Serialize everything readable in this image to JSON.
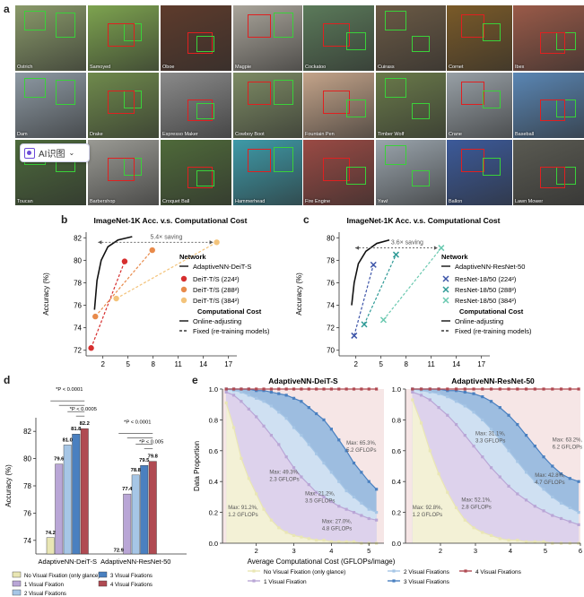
{
  "panel_letters": {
    "a": "a",
    "b": "b",
    "c": "c",
    "d": "d",
    "e": "e"
  },
  "panel_a": {
    "tiles": [
      {
        "label": "Ostrich",
        "color": "#8a9a6a"
      },
      {
        "label": "Samoyed",
        "color": "#7da34f"
      },
      {
        "label": "Oboe",
        "color": "#5e3b2c"
      },
      {
        "label": "Magpie",
        "color": "#a9a49a"
      },
      {
        "label": "Cockatoo",
        "color": "#5b7a5a"
      },
      {
        "label": "Cuirass",
        "color": "#6b5a45"
      },
      {
        "label": "Cornet",
        "color": "#7a5a28"
      },
      {
        "label": "Ibex",
        "color": "#9a5a48"
      },
      {
        "label": "Dam",
        "color": "#8e9aa4"
      },
      {
        "label": "Drake",
        "color": "#6f8a4c"
      },
      {
        "label": "Espresso Maker",
        "color": "#8a8a8a"
      },
      {
        "label": "Cowboy Boot",
        "color": "#7d8b64"
      },
      {
        "label": "Fountain Pen",
        "color": "#c4a48a"
      },
      {
        "label": "Timber Wolf",
        "color": "#6a7a4a"
      },
      {
        "label": "Crane",
        "color": "#98a0a6"
      },
      {
        "label": "Baseball",
        "color": "#5a86b4"
      },
      {
        "label": "Toucan",
        "color": "#4d6a3c"
      },
      {
        "label": "Barbershop",
        "color": "#9a9a94"
      },
      {
        "label": "Croquet Ball",
        "color": "#4f6a3a"
      },
      {
        "label": "Hammerhead",
        "color": "#3e9aa8"
      },
      {
        "label": "Fire Engine",
        "color": "#9a4a44"
      },
      {
        "label": "Yawl",
        "color": "#9aa4ac"
      },
      {
        "label": "Ballon",
        "color": "#3c5a9a"
      },
      {
        "label": "Lawn Mower",
        "color": "#5a5a52"
      }
    ],
    "overlay_text": "AI识图"
  },
  "panel_b": {
    "chart_data": {
      "type": "scatter",
      "title": "ImageNet-1K Acc. v.s. Computational Cost",
      "xlabel": "Average Computational Cost (GFLOPs/image)",
      "ylabel": "Accuracy (%)",
      "xlim": [
        0,
        18
      ],
      "ylim": [
        71.5,
        82.5
      ],
      "xticks": [
        2,
        5,
        8,
        11,
        14,
        17
      ],
      "yticks": [
        72,
        74,
        76,
        78,
        80,
        82
      ],
      "series": [
        {
          "name": "DeiT-T/S (224²)",
          "color": "#d62e2e",
          "points": [
            [
              0.6,
              72.2
            ],
            [
              4.6,
              79.9
            ]
          ]
        },
        {
          "name": "DeiT-T/S (288²)",
          "color": "#e88a4a",
          "points": [
            [
              1.1,
              75.0
            ],
            [
              7.9,
              80.9
            ]
          ]
        },
        {
          "name": "DeiT-T/S (384²)",
          "color": "#f3c37a",
          "points": [
            [
              3.6,
              76.6
            ],
            [
              15.6,
              81.6
            ]
          ]
        }
      ],
      "curve": [
        [
          1.0,
          75.6
        ],
        [
          1.3,
          78.2
        ],
        [
          1.8,
          80.0
        ],
        [
          2.6,
          81.2
        ],
        [
          3.8,
          81.8
        ],
        [
          5.5,
          82.1
        ]
      ],
      "annotation": "5.4× saving",
      "legend": {
        "network_title": "Network",
        "network_item": "AdaptiveNN-DeiT-S",
        "cost_title": "Computational Cost",
        "online": "Online-adjusting",
        "fixed": "Fixed (re-training models)"
      }
    }
  },
  "panel_c": {
    "chart_data": {
      "type": "scatter",
      "title": "ImageNet-1K Acc. v.s. Computational Cost",
      "xlabel": "Average Computational Cost (GFLOPs/image)",
      "ylabel": "Accuracy (%)",
      "xlim": [
        0,
        18
      ],
      "ylim": [
        69.5,
        80.5
      ],
      "xticks": [
        2,
        5,
        8,
        11,
        14,
        17
      ],
      "yticks": [
        70,
        72,
        74,
        76,
        78,
        80
      ],
      "series": [
        {
          "name": "ResNet-18/50 (224²)",
          "color": "#3d55a8",
          "points": [
            [
              1.8,
              71.3
            ],
            [
              4.1,
              77.6
            ]
          ]
        },
        {
          "name": "ResNet-18/50 (288²)",
          "color": "#2e9a96",
          "points": [
            [
              3.0,
              72.3
            ],
            [
              6.8,
              78.5
            ]
          ]
        },
        {
          "name": "ResNet-18/50 (384²)",
          "color": "#6ac9b0",
          "points": [
            [
              5.3,
              72.7
            ],
            [
              12.2,
              79.1
            ]
          ]
        }
      ],
      "curve": [
        [
          1.5,
          74.0
        ],
        [
          1.8,
          76.0
        ],
        [
          2.3,
          77.7
        ],
        [
          3.2,
          78.8
        ],
        [
          4.5,
          79.5
        ],
        [
          6.0,
          79.8
        ]
      ],
      "annotation": "3.6× saving",
      "legend": {
        "network_title": "Network",
        "network_item": "AdaptiveNN-ResNet-50",
        "cost_title": "Computational Cost",
        "online": "Online-adjusting",
        "fixed": "Fixed (re-training models)"
      }
    }
  },
  "panel_d": {
    "chart_data": {
      "type": "bar",
      "ylabel": "Accuracy (%)",
      "ylim": [
        73,
        83
      ],
      "yticks": [
        74,
        76,
        78,
        80,
        82
      ],
      "categories": [
        "AdaptiveNN-DeiT-S",
        "AdaptiveNN-ResNet-50"
      ],
      "series": [
        {
          "name": "No Visual Fixation (only glance)",
          "color": "#e9e6b4",
          "values": [
            74.2,
            72.9
          ]
        },
        {
          "name": "1 Visual Fixation",
          "color": "#b9a6d6",
          "values": [
            79.6,
            77.4
          ]
        },
        {
          "name": "2 Visual Fixations",
          "color": "#a6c6e6",
          "values": [
            81.0,
            78.8
          ]
        },
        {
          "name": "3 Visual Fixations",
          "color": "#4a80c0",
          "values": [
            81.8,
            79.5
          ]
        },
        {
          "name": "4 Visual Fixations",
          "color": "#b04a52",
          "values": [
            82.2,
            79.8
          ]
        }
      ],
      "value_labels": [
        [
          "74.2",
          "79.6",
          "81.0",
          "81.8",
          "82.2"
        ],
        [
          "72.9",
          "77.4",
          "78.8",
          "79.5",
          "79.8"
        ]
      ],
      "significance": [
        [
          "*P < 0.0001",
          "*P < 0.0005"
        ],
        [
          "*P < 0.0001",
          "*P < 0.005"
        ]
      ]
    }
  },
  "panel_e": {
    "chart_data": [
      {
        "type": "area",
        "title": "AdaptiveNN-DeiT-S",
        "xlabel": "Average Computational Cost (GFLOPs/image)",
        "ylabel": "Data Proportion",
        "xlim": [
          1.1,
          5.4
        ],
        "ylim": [
          0,
          1.0
        ],
        "xticks": [
          2,
          3,
          4,
          5
        ],
        "yticks": [
          0.0,
          0.2,
          0.4,
          0.6,
          0.8,
          1.0
        ],
        "x": [
          1.2,
          1.4,
          1.6,
          1.8,
          2.0,
          2.2,
          2.4,
          2.6,
          2.8,
          3.0,
          3.2,
          3.4,
          3.6,
          3.8,
          4.0,
          4.2,
          4.4,
          4.6,
          4.8,
          5.0,
          5.2
        ],
        "series": [
          {
            "name": "No Visual Fixation (only glance)",
            "values": [
              0.91,
              0.75,
              0.55,
              0.42,
              0.32,
              0.22,
              0.15,
              0.1,
              0.07,
              0.05,
              0.04,
              0.03,
              0.02,
              0.02,
              0.01,
              0.01,
              0.01,
              0.01,
              0.0,
              0.0,
              0.0
            ]
          },
          {
            "name": "1 Visual Fixation",
            "values": [
              0.98,
              0.96,
              0.92,
              0.87,
              0.82,
              0.76,
              0.7,
              0.64,
              0.56,
              0.49,
              0.43,
              0.38,
              0.33,
              0.3,
              0.27,
              0.24,
              0.22,
              0.2,
              0.18,
              0.16,
              0.15
            ]
          },
          {
            "name": "2 Visual Fixations",
            "values": [
              1.0,
              0.99,
              0.98,
              0.96,
              0.94,
              0.92,
              0.89,
              0.85,
              0.81,
              0.75,
              0.7,
              0.64,
              0.58,
              0.52,
              0.46,
              0.4,
              0.34,
              0.3,
              0.26,
              0.22,
              0.2
            ]
          },
          {
            "name": "3 Visual Fixations",
            "values": [
              1.0,
              1.0,
              1.0,
              1.0,
              0.99,
              0.99,
              0.98,
              0.97,
              0.96,
              0.94,
              0.92,
              0.88,
              0.84,
              0.8,
              0.74,
              0.67,
              0.6,
              0.52,
              0.46,
              0.4,
              0.35
            ]
          },
          {
            "name": "4 Visual Fixations",
            "values": [
              1.0,
              1.0,
              1.0,
              1.0,
              1.0,
              1.0,
              1.0,
              1.0,
              1.0,
              1.0,
              1.0,
              1.0,
              1.0,
              1.0,
              1.0,
              1.0,
              1.0,
              1.0,
              1.0,
              1.0,
              1.0
            ]
          }
        ],
        "annotations": [
          {
            "text": [
              "Max: 91.2%,",
              "1.2 GFLOPs"
            ],
            "x": 1.25,
            "y": 0.22
          },
          {
            "text": [
              "Max: 49.3%,",
              "2.3 GFLOPs"
            ],
            "x": 2.35,
            "y": 0.45
          },
          {
            "text": [
              "Max: 21.2%,",
              "3.5 GFLOPs"
            ],
            "x": 3.3,
            "y": 0.31
          },
          {
            "text": [
              "Max: 27.0%,",
              "4.8 GFLOPs"
            ],
            "x": 3.75,
            "y": 0.13
          },
          {
            "text": [
              "Max: 65.3%,",
              "5.2 GFLOPs"
            ],
            "x": 4.4,
            "y": 0.64
          }
        ]
      },
      {
        "type": "area",
        "title": "AdaptiveNN-ResNet-50",
        "xlabel": "",
        "ylabel": "",
        "xlim": [
          1.0,
          6.0
        ],
        "ylim": [
          0,
          1.0
        ],
        "xticks": [
          2,
          3,
          4,
          5,
          6
        ],
        "yticks": [
          0.0,
          0.2,
          0.4,
          0.6,
          0.8,
          1.0
        ],
        "x": [
          1.2,
          1.45,
          1.7,
          1.95,
          2.2,
          2.45,
          2.7,
          2.95,
          3.2,
          3.45,
          3.7,
          3.95,
          4.2,
          4.45,
          4.7,
          4.95,
          5.2,
          5.45,
          5.7,
          5.95
        ],
        "series": [
          {
            "name": "No Visual Fixation (only glance)",
            "values": [
              0.93,
              0.78,
              0.6,
              0.45,
              0.33,
              0.23,
              0.15,
              0.1,
              0.07,
              0.05,
              0.03,
              0.02,
              0.02,
              0.01,
              0.01,
              0.01,
              0.0,
              0.0,
              0.0,
              0.0
            ]
          },
          {
            "name": "1 Visual Fixation",
            "values": [
              0.98,
              0.96,
              0.93,
              0.88,
              0.83,
              0.77,
              0.7,
              0.63,
              0.56,
              0.49,
              0.43,
              0.37,
              0.32,
              0.28,
              0.24,
              0.21,
              0.18,
              0.16,
              0.14,
              0.12
            ]
          },
          {
            "name": "2 Visual Fixations",
            "values": [
              1.0,
              0.99,
              0.98,
              0.97,
              0.95,
              0.92,
              0.89,
              0.85,
              0.8,
              0.74,
              0.67,
              0.6,
              0.53,
              0.46,
              0.4,
              0.35,
              0.3,
              0.26,
              0.23,
              0.2
            ]
          },
          {
            "name": "3 Visual Fixations",
            "values": [
              1.0,
              1.0,
              1.0,
              1.0,
              0.99,
              0.99,
              0.98,
              0.97,
              0.95,
              0.92,
              0.88,
              0.83,
              0.77,
              0.7,
              0.63,
              0.56,
              0.5,
              0.45,
              0.42,
              0.4
            ]
          },
          {
            "name": "4 Visual Fixations",
            "values": [
              1.0,
              1.0,
              1.0,
              1.0,
              1.0,
              1.0,
              1.0,
              1.0,
              1.0,
              1.0,
              1.0,
              1.0,
              1.0,
              1.0,
              1.0,
              1.0,
              1.0,
              1.0,
              1.0,
              1.0
            ]
          }
        ],
        "annotations": [
          {
            "text": [
              "Max: 92.8%,",
              "1.2 GFLOPs"
            ],
            "x": 1.2,
            "y": 0.22
          },
          {
            "text": [
              "Max: 31.1%,",
              "3.3 GFLOPs"
            ],
            "x": 3.0,
            "y": 0.7
          },
          {
            "text": [
              "Max: 52.1%,",
              "2.8 GFLOPs"
            ],
            "x": 2.6,
            "y": 0.27
          },
          {
            "text": [
              "Max: 42.8%,",
              "4.7 GFLOPs"
            ],
            "x": 4.7,
            "y": 0.43
          },
          {
            "text": [
              "Max: 63.2%,",
              "6.2 GFLOPs"
            ],
            "x": 5.2,
            "y": 0.66
          }
        ]
      }
    ],
    "legend_items": [
      "No Visual Fixation (only glance)",
      "1 Visual Fixation",
      "2 Visual Fixations",
      "3 Visual Fixations",
      "4 Visual Fixations"
    ],
    "colors": [
      "#e9e6b4",
      "#b9a6d6",
      "#a6c6e6",
      "#4a80c0",
      "#b04a52"
    ],
    "fill_colors": [
      "#f3f1d6",
      "#ddd2ec",
      "#cfe0f2",
      "#9dbde0",
      "#f6e6e6"
    ]
  }
}
